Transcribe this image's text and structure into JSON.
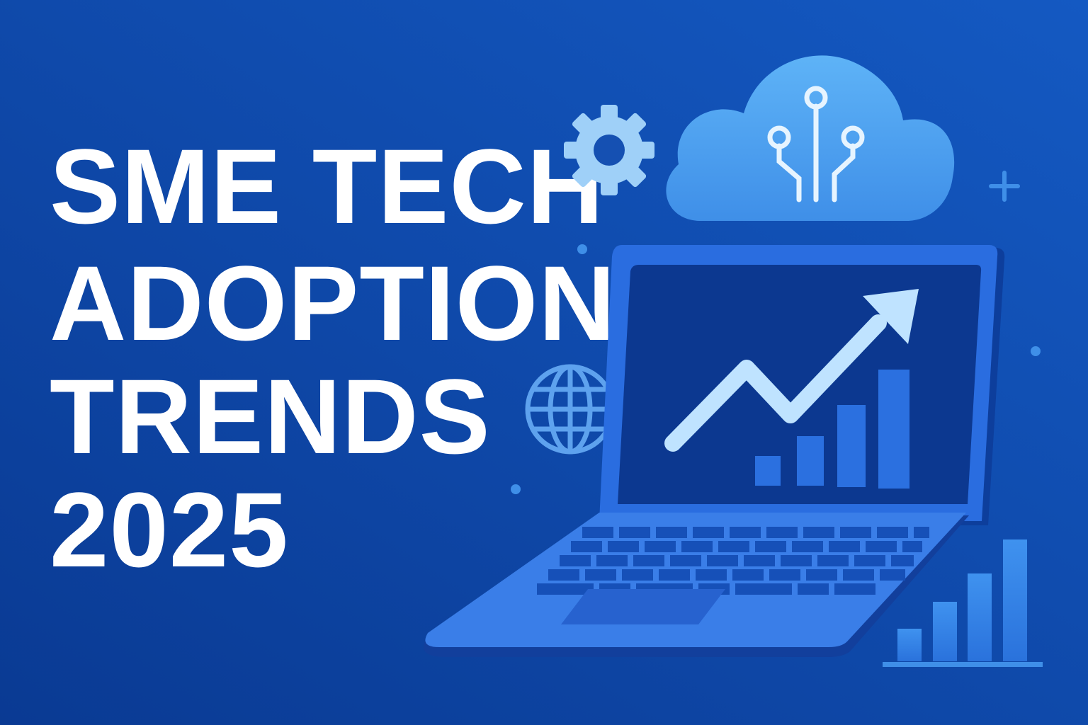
{
  "title": {
    "lines": [
      "SME TECH",
      "ADOPTION",
      "TRENDS",
      "2025"
    ]
  }
}
